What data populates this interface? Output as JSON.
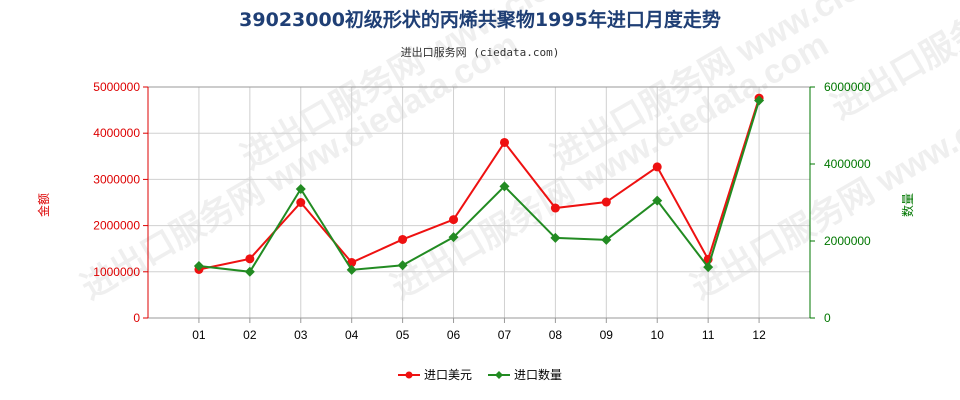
{
  "chart_data": {
    "type": "line",
    "title": "39023000初级形状的丙烯共聚物1995年进口月度走势",
    "subtitle": "进出口服务网 (ciedata.com)",
    "categories": [
      "01",
      "02",
      "03",
      "04",
      "05",
      "06",
      "07",
      "08",
      "09",
      "10",
      "11",
      "12"
    ],
    "y_left": {
      "label": "金额",
      "ylim": [
        0,
        5000000
      ],
      "ticks": [
        "0",
        "1000000",
        "2000000",
        "3000000",
        "4000000",
        "5000000"
      ],
      "color": "#dd0000"
    },
    "y_right": {
      "label": "数量",
      "ylim": [
        0,
        6000000
      ],
      "ticks": [
        "0",
        "2000000",
        "4000000",
        "6000000"
      ],
      "color": "#007700"
    },
    "series": [
      {
        "name": "进口美元",
        "axis": "left",
        "color": "#ee1111",
        "marker": "circle",
        "values": [
          1050000,
          1280000,
          2500000,
          1200000,
          1700000,
          2130000,
          3800000,
          2380000,
          2510000,
          3270000,
          1270000,
          4760000
        ]
      },
      {
        "name": "进口数量",
        "axis": "right",
        "color": "#228b22",
        "marker": "diamond",
        "values": [
          1350000,
          1200000,
          3350000,
          1250000,
          1370000,
          2100000,
          3420000,
          2080000,
          2030000,
          3050000,
          1320000,
          5650000
        ]
      }
    ],
    "grid": true,
    "legend": "bottom-center",
    "watermark": "进出口服务网 www.ciedata.com"
  }
}
